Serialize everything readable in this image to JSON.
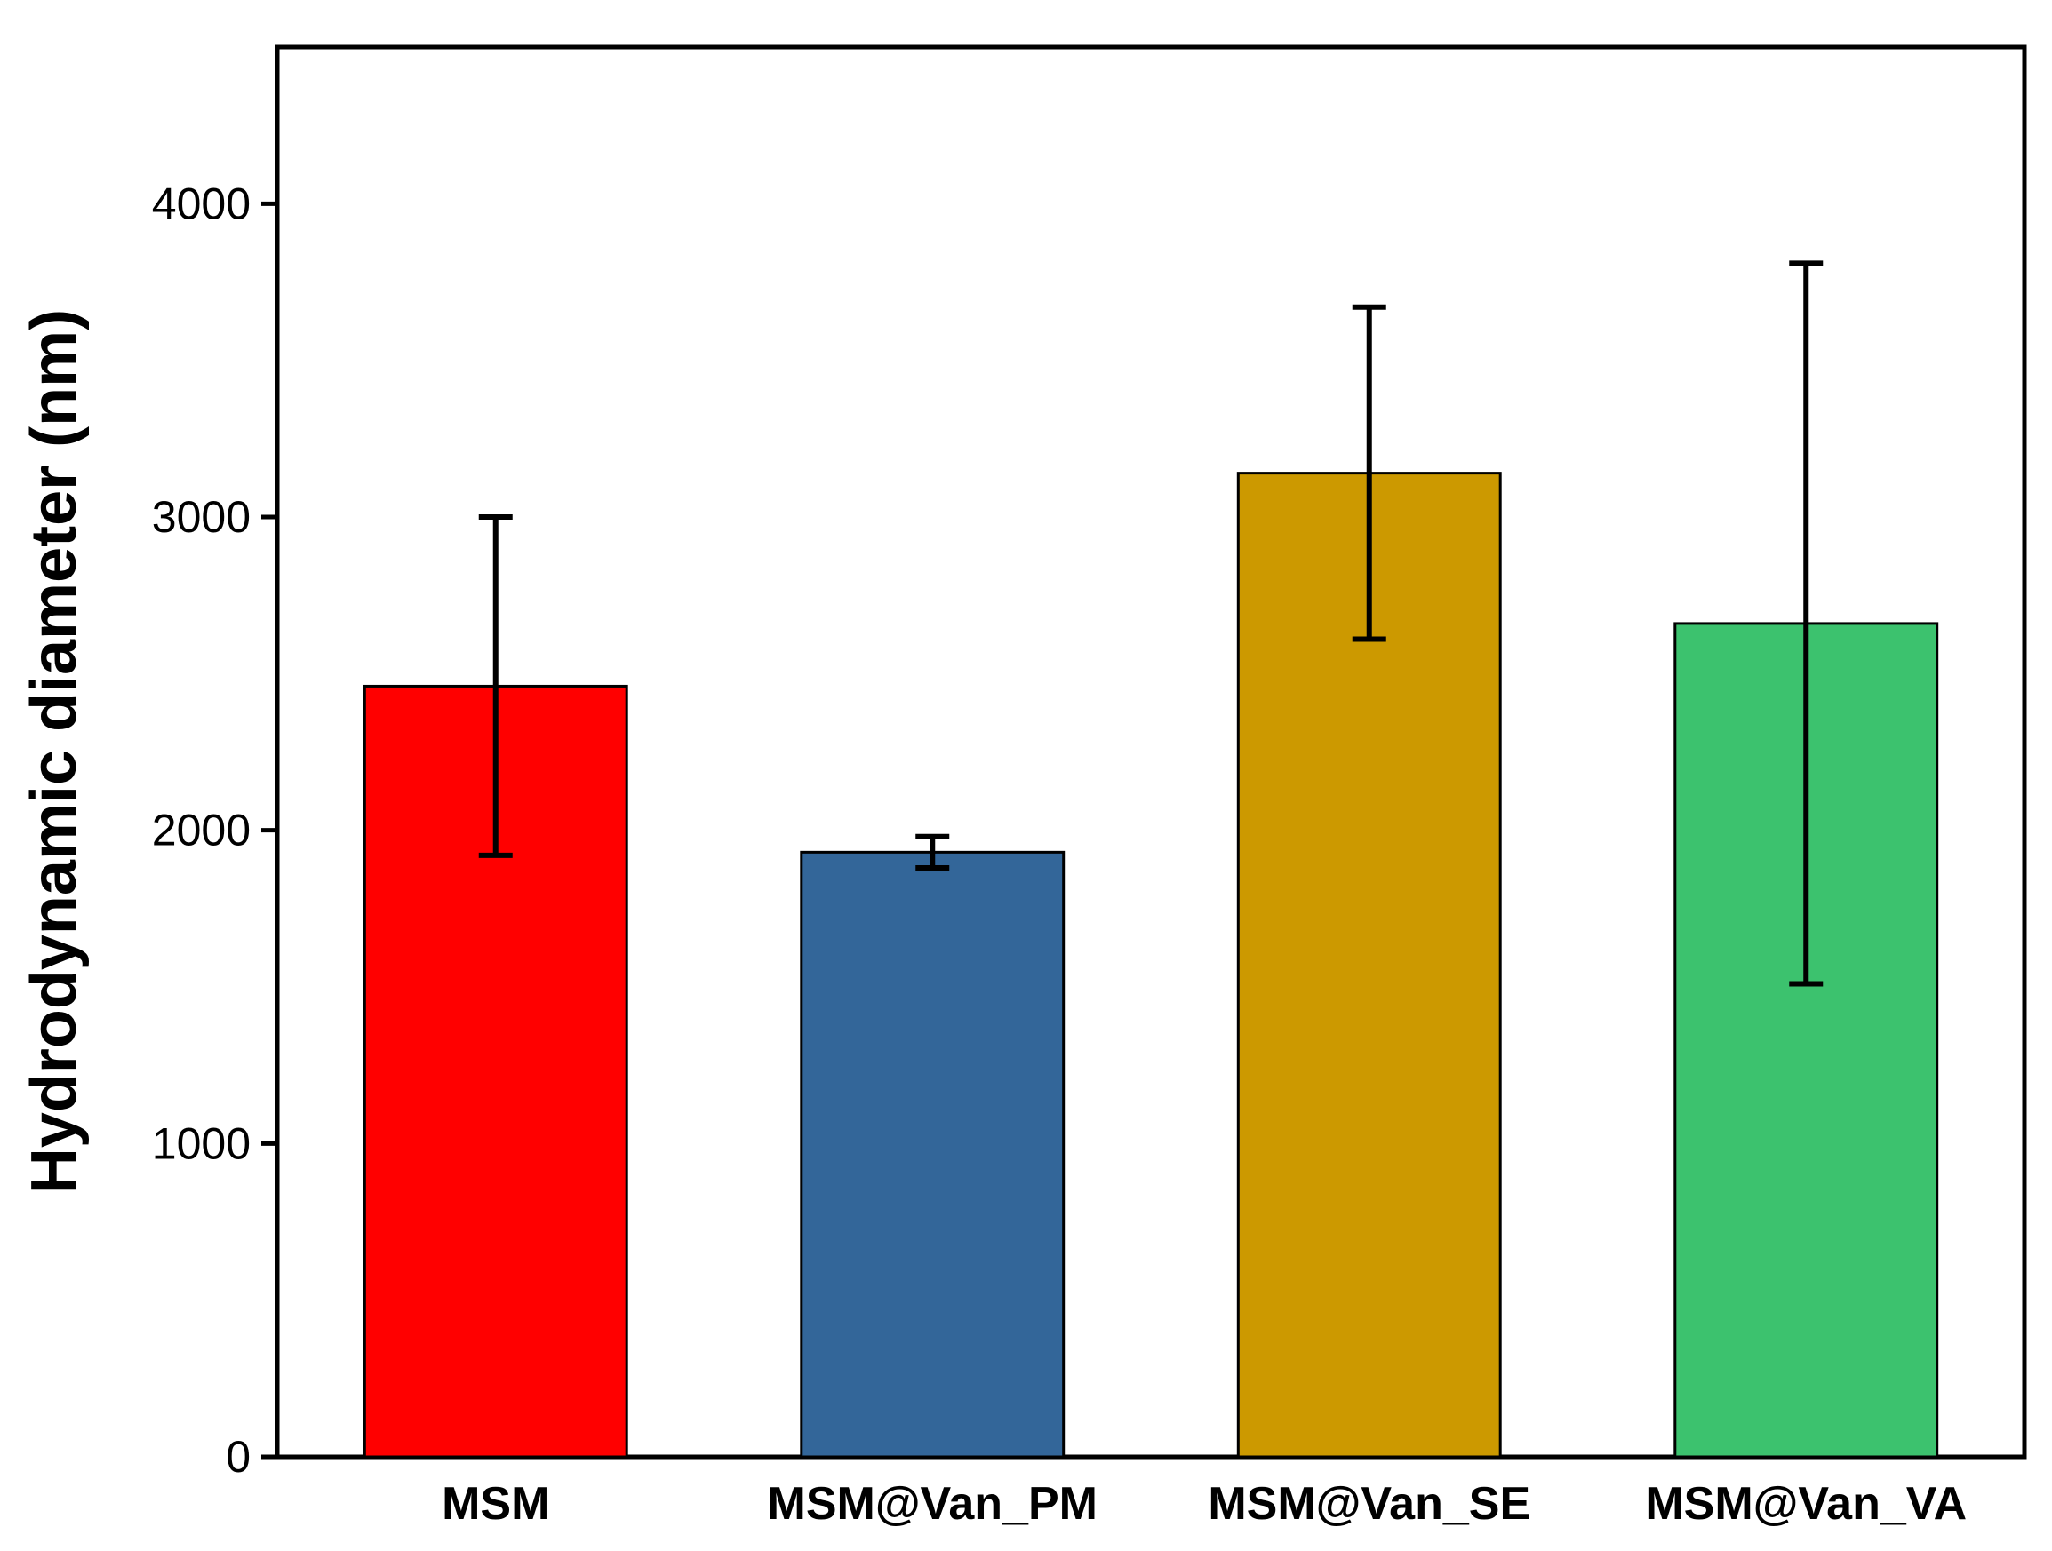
{
  "chart_data": {
    "type": "bar",
    "title": "",
    "xlabel": "",
    "ylabel": "Hydrodynamic diameter (nm)",
    "ylim": [
      0,
      4500
    ],
    "yticks": [
      0,
      1000,
      2000,
      3000,
      4000
    ],
    "grid": false,
    "legend": "none",
    "categories": [
      "MSM",
      "MSM@Van_PM",
      "MSM@Van_SE",
      "MSM@Van_VA"
    ],
    "values": [
      2460,
      1930,
      3140,
      2660
    ],
    "errors": [
      540,
      50,
      530,
      1150
    ],
    "colors": [
      "#ff0000",
      "#336699",
      "#cc9900",
      "#3cc26e"
    ]
  }
}
